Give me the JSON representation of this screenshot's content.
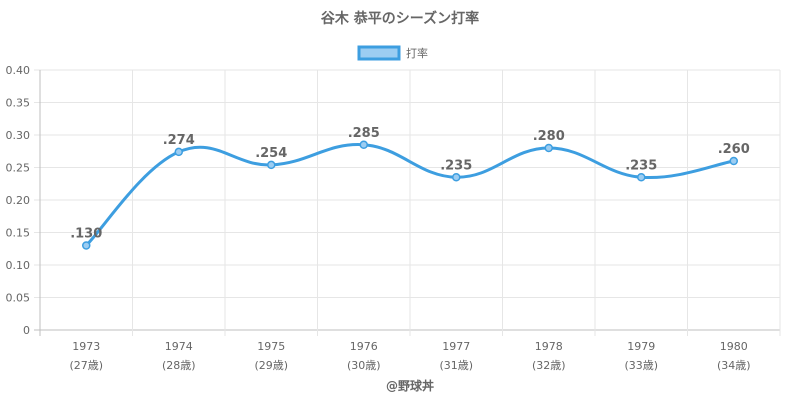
{
  "chart_data": {
    "type": "line",
    "title": "谷木 恭平のシーズン打率",
    "legend": {
      "label": "打率",
      "position": "top"
    },
    "categories": [
      "1973",
      "1974",
      "1975",
      "1976",
      "1977",
      "1978",
      "1979",
      "1980"
    ],
    "sub_categories": [
      "(27歳)",
      "(28歳)",
      "(29歳)",
      "(30歳)",
      "(31歳)",
      "(32歳)",
      "(33歳)",
      "(34歳)"
    ],
    "series": [
      {
        "name": "打率",
        "values": [
          0.13,
          0.274,
          0.254,
          0.285,
          0.235,
          0.28,
          0.235,
          0.26
        ],
        "labels": [
          ".130",
          ".274",
          ".254",
          ".285",
          ".235",
          ".280",
          ".235",
          ".260"
        ]
      }
    ],
    "ylim": [
      0,
      0.4
    ],
    "yticks": [
      0,
      0.05,
      0.1,
      0.15,
      0.2,
      0.25,
      0.3,
      0.35,
      0.4
    ],
    "ytick_labels": [
      "0",
      "0.05",
      "0.10",
      "0.15",
      "0.20",
      "0.25",
      "0.30",
      "0.35",
      "0.40"
    ],
    "grid": true,
    "credit": "@野球丼",
    "colors": {
      "line": "#3d9ee0",
      "fill": "#9ccdf2",
      "grid": "#e6e6e6",
      "text": "#666666"
    }
  }
}
